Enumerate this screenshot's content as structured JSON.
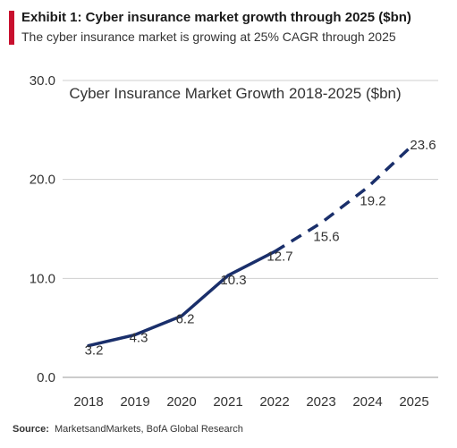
{
  "header": {
    "title": "Exhibit 1: Cyber insurance market growth through 2025 ($bn)",
    "subtitle": "The cyber insurance market is growing at 25% CAGR through 2025"
  },
  "footer": {
    "source_label": "Source:",
    "source_text": "MarketsandMarkets, BofA Global Research"
  },
  "colors": {
    "line": "#1a2f6b",
    "accent": "#c8102e",
    "grid": "#cfcfcf",
    "text": "#333333"
  },
  "chart_data": {
    "type": "line",
    "title": "Cyber Insurance Market Growth 2018-2025 ($bn)",
    "xlabel": "",
    "ylabel": "",
    "categories": [
      "2018",
      "2019",
      "2020",
      "2021",
      "2022",
      "2023",
      "2024",
      "2025"
    ],
    "series": [
      {
        "values": [
          3.2,
          4.3,
          6.2,
          10.3,
          12.7,
          15.6,
          19.2,
          23.6
        ],
        "actual_through": "2022",
        "projected_from": "2022",
        "projected_style": "dashed"
      }
    ],
    "data_labels": [
      "3.2",
      "4.3",
      "6.2",
      "10.3",
      "12.7",
      "15.6",
      "19.2",
      "23.6"
    ],
    "y_ticks": [
      "0.0",
      "10.0",
      "20.0",
      "30.0"
    ],
    "ylim": [
      0,
      30
    ],
    "grid": true,
    "legend": "none"
  }
}
